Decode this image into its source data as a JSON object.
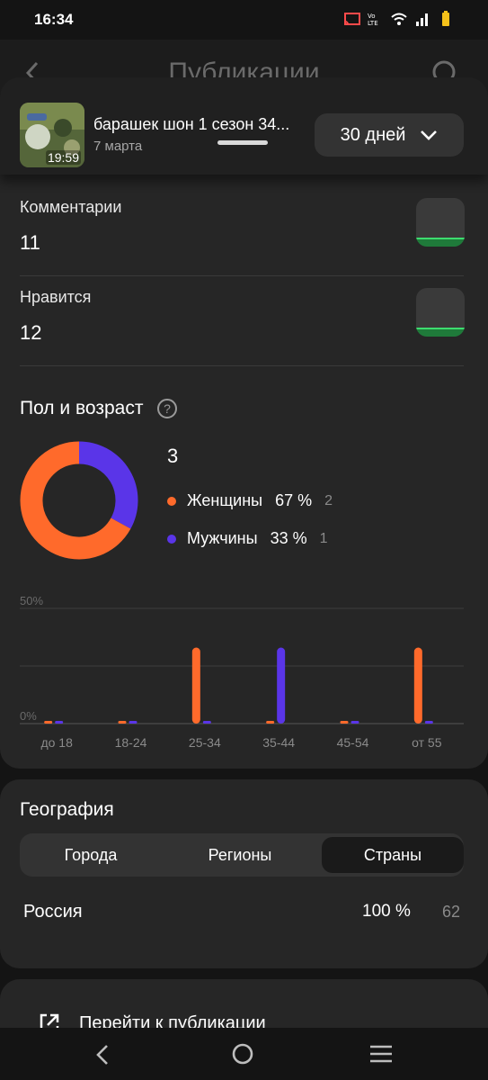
{
  "status_bar": {
    "time": "16:34"
  },
  "background": {
    "title": "Публикации"
  },
  "publication": {
    "title": "барашек шон 1 сезон 34...",
    "date": "7 марта",
    "duration": "19:59",
    "period": "30 дней"
  },
  "stats": [
    {
      "label": "Комментарии",
      "value": "11"
    },
    {
      "label": "Нравится",
      "value": "12"
    }
  ],
  "gender_age": {
    "title": "Пол и возраст",
    "total": "3",
    "legend": [
      {
        "label": "Женщины",
        "percent": "67 %",
        "count": "2",
        "color": "#ff6a2b"
      },
      {
        "label": "Мужчины",
        "percent": "33 %",
        "count": "1",
        "color": "#5a35e8"
      }
    ]
  },
  "chart_data": [
    {
      "type": "pie",
      "labels": [
        "Женщины",
        "Мужчины"
      ],
      "values": [
        67,
        33
      ],
      "colors": [
        "#ff6a2b",
        "#5a35e8"
      ]
    },
    {
      "type": "bar",
      "categories": [
        "до 18",
        "18-24",
        "25-34",
        "35-44",
        "45-54",
        "от 55"
      ],
      "series": [
        {
          "name": "Женщины",
          "values": [
            0,
            0,
            33,
            0,
            0,
            33
          ],
          "color": "#ff6a2b"
        },
        {
          "name": "Мужчины",
          "values": [
            0,
            0,
            0,
            33,
            0,
            0
          ],
          "color": "#5a35e8"
        }
      ],
      "y_ticks": [
        "50%",
        "0%"
      ],
      "ylim": [
        0,
        50
      ]
    }
  ],
  "geography": {
    "title": "География",
    "tabs": [
      "Города",
      "Регионы",
      "Страны"
    ],
    "active_tab": "Страны",
    "rows": [
      {
        "name": "Россия",
        "percent": "100 %",
        "count": "62"
      }
    ]
  },
  "footer": {
    "goto_label": "Перейти к публикации"
  }
}
